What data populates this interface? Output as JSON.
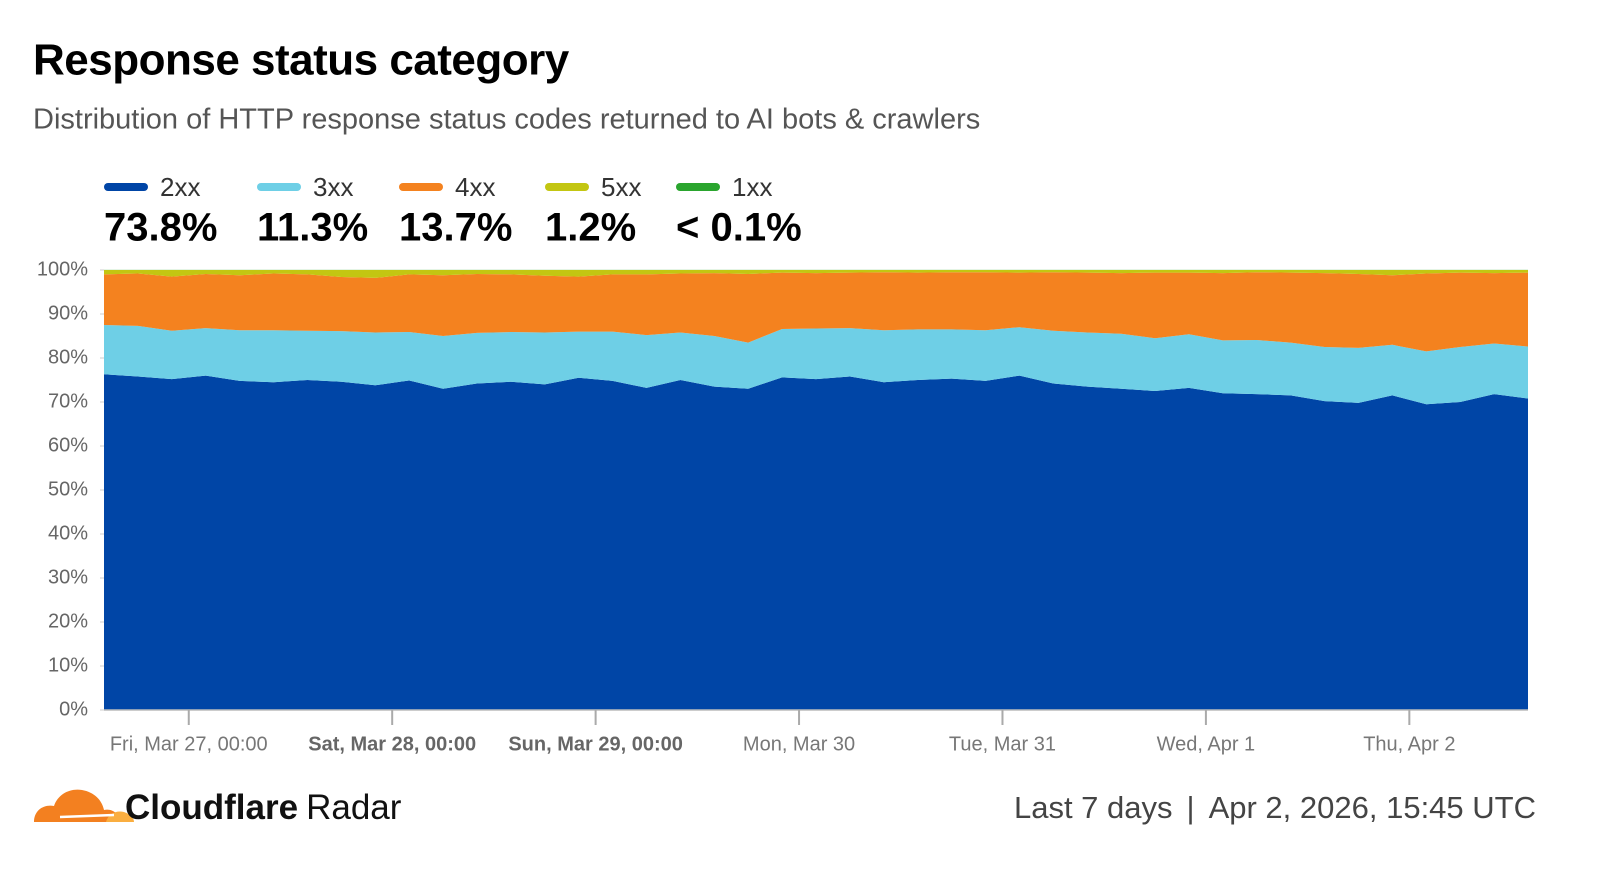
{
  "chart_data": {
    "type": "stacked-area",
    "title": "Response status category",
    "subtitle": "Distribution of HTTP response status codes returned to AI bots & crawlers",
    "x": [
      "Mar 26, 14:00",
      "Mar 26, 18:00",
      "Mar 26, 22:00",
      "Mar 27, 02:00",
      "Mar 27, 06:00",
      "Mar 27, 10:00",
      "Mar 27, 14:00",
      "Mar 27, 18:00",
      "Mar 27, 22:00",
      "Mar 28, 02:00",
      "Mar 28, 06:00",
      "Mar 28, 10:00",
      "Mar 28, 14:00",
      "Mar 28, 18:00",
      "Mar 28, 22:00",
      "Mar 29, 02:00",
      "Mar 29, 06:00",
      "Mar 29, 10:00",
      "Mar 29, 14:00",
      "Mar 29, 18:00",
      "Mar 29, 22:00",
      "Mar 30, 02:00",
      "Mar 30, 06:00",
      "Mar 30, 10:00",
      "Mar 30, 14:00",
      "Mar 30, 18:00",
      "Mar 30, 22:00",
      "Mar 31, 02:00",
      "Mar 31, 06:00",
      "Mar 31, 10:00",
      "Mar 31, 14:00",
      "Mar 31, 18:00",
      "Mar 31, 22:00",
      "Apr 1, 02:00",
      "Apr 1, 06:00",
      "Apr 1, 10:00",
      "Apr 1, 14:00",
      "Apr 1, 18:00",
      "Apr 1, 22:00",
      "Apr 2, 02:00",
      "Apr 2, 06:00",
      "Apr 2, 10:00",
      "Apr 2, 14:00"
    ],
    "xlim": [
      "Mar 26, 14:00",
      "Apr 2, 14:00"
    ],
    "xticks": [
      {
        "value": "Mar 27, 00:00",
        "label": "Fri, Mar 27, 00:00"
      },
      {
        "value": "Mar 28, 00:00",
        "label": "Sat, Mar 28, 00:00",
        "bold": true
      },
      {
        "value": "Mar 29, 00:00",
        "label": "Sun, Mar 29, 00:00",
        "bold": true
      },
      {
        "value": "Mar 30, 00:00",
        "label": "Mon, Mar 30"
      },
      {
        "value": "Mar 31, 00:00",
        "label": "Tue, Mar 31"
      },
      {
        "value": "Apr 1, 00:00",
        "label": "Wed, Apr 1"
      },
      {
        "value": "Apr 2, 00:00",
        "label": "Thu, Apr 2"
      }
    ],
    "ylim": [
      0,
      100
    ],
    "yticks": [
      {
        "value": 0,
        "label": "0%"
      },
      {
        "value": 10,
        "label": "10%"
      },
      {
        "value": 20,
        "label": "20%"
      },
      {
        "value": 30,
        "label": "30%"
      },
      {
        "value": 40,
        "label": "40%"
      },
      {
        "value": 50,
        "label": "50%"
      },
      {
        "value": 60,
        "label": "60%"
      },
      {
        "value": 70,
        "label": "70%"
      },
      {
        "value": 80,
        "label": "80%"
      },
      {
        "value": 90,
        "label": "90%"
      },
      {
        "value": 100,
        "label": "100%"
      }
    ],
    "series": [
      {
        "name": "2xx",
        "color": "#0045a6",
        "total": "73.8%",
        "values": [
          76.3,
          75.8,
          75.2,
          76.0,
          74.8,
          74.5,
          75.0,
          74.6,
          73.8,
          74.9,
          73.0,
          74.2,
          74.6,
          74.0,
          75.5,
          74.8,
          73.2,
          75.0,
          73.5,
          73.0,
          75.6,
          75.2,
          75.8,
          74.5,
          75.0,
          75.3,
          74.8,
          76.0,
          74.2,
          73.5,
          73.0,
          72.5,
          73.2,
          72.0,
          71.8,
          71.5,
          70.2,
          69.8,
          71.5,
          69.5,
          70.0,
          71.8,
          70.8
        ]
      },
      {
        "name": "3xx",
        "color": "#6ecfe6",
        "total": "11.3%",
        "values": [
          11.2,
          11.5,
          11.0,
          10.8,
          11.5,
          11.8,
          11.2,
          11.5,
          12.0,
          11.0,
          12.0,
          11.5,
          11.3,
          11.8,
          10.5,
          11.2,
          12.0,
          10.8,
          11.5,
          10.5,
          11.0,
          11.5,
          11.0,
          11.8,
          11.5,
          11.2,
          11.5,
          11.0,
          12.0,
          12.3,
          12.5,
          12.0,
          12.2,
          12.0,
          12.3,
          12.0,
          12.3,
          12.5,
          11.5,
          12.0,
          12.5,
          11.5,
          11.8
        ]
      },
      {
        "name": "4xx",
        "color": "#f4821f",
        "total": "13.7%",
        "values": [
          11.5,
          11.9,
          12.3,
          12.3,
          12.5,
          12.9,
          12.8,
          12.3,
          12.4,
          13.1,
          13.8,
          13.4,
          13.1,
          12.9,
          12.5,
          13.0,
          13.8,
          13.4,
          14.3,
          15.6,
          12.8,
          12.6,
          12.6,
          13.2,
          12.9,
          13.0,
          13.2,
          12.4,
          13.3,
          13.6,
          13.8,
          14.9,
          14.0,
          15.3,
          15.4,
          15.9,
          16.8,
          16.8,
          15.8,
          17.7,
          16.9,
          16.0,
          16.8
        ]
      },
      {
        "name": "5xx",
        "color": "#c3c612",
        "total": "1.2%",
        "values": [
          1.0,
          0.8,
          1.5,
          0.9,
          1.2,
          0.8,
          1.0,
          1.6,
          1.8,
          1.0,
          1.2,
          0.9,
          1.0,
          1.3,
          1.5,
          1.0,
          1.0,
          0.8,
          0.7,
          0.9,
          0.6,
          0.7,
          0.6,
          0.5,
          0.6,
          0.5,
          0.5,
          0.6,
          0.5,
          0.6,
          0.7,
          0.6,
          0.6,
          0.7,
          0.5,
          0.6,
          0.7,
          0.9,
          1.2,
          0.8,
          0.6,
          0.7,
          0.6
        ]
      },
      {
        "name": "1xx",
        "color": "#2aa52e",
        "total": "< 0.1%",
        "values": [
          0.04,
          0.04,
          0.04,
          0.04,
          0.04,
          0.04,
          0.04,
          0.04,
          0.04,
          0.04,
          0.04,
          0.04,
          0.04,
          0.04,
          0.04,
          0.04,
          0.04,
          0.04,
          0.04,
          0.04,
          0.04,
          0.04,
          0.04,
          0.04,
          0.04,
          0.04,
          0.04,
          0.04,
          0.04,
          0.04,
          0.04,
          0.04,
          0.04,
          0.04,
          0.04,
          0.04,
          0.04,
          0.04,
          0.04,
          0.04,
          0.04,
          0.04,
          0.04
        ]
      }
    ]
  },
  "footer": {
    "brand": "Cloudflare",
    "product": "Radar",
    "period": "Last 7 days",
    "separator": "|",
    "timestamp": "Apr 2, 2026, 15:45 UTC"
  }
}
